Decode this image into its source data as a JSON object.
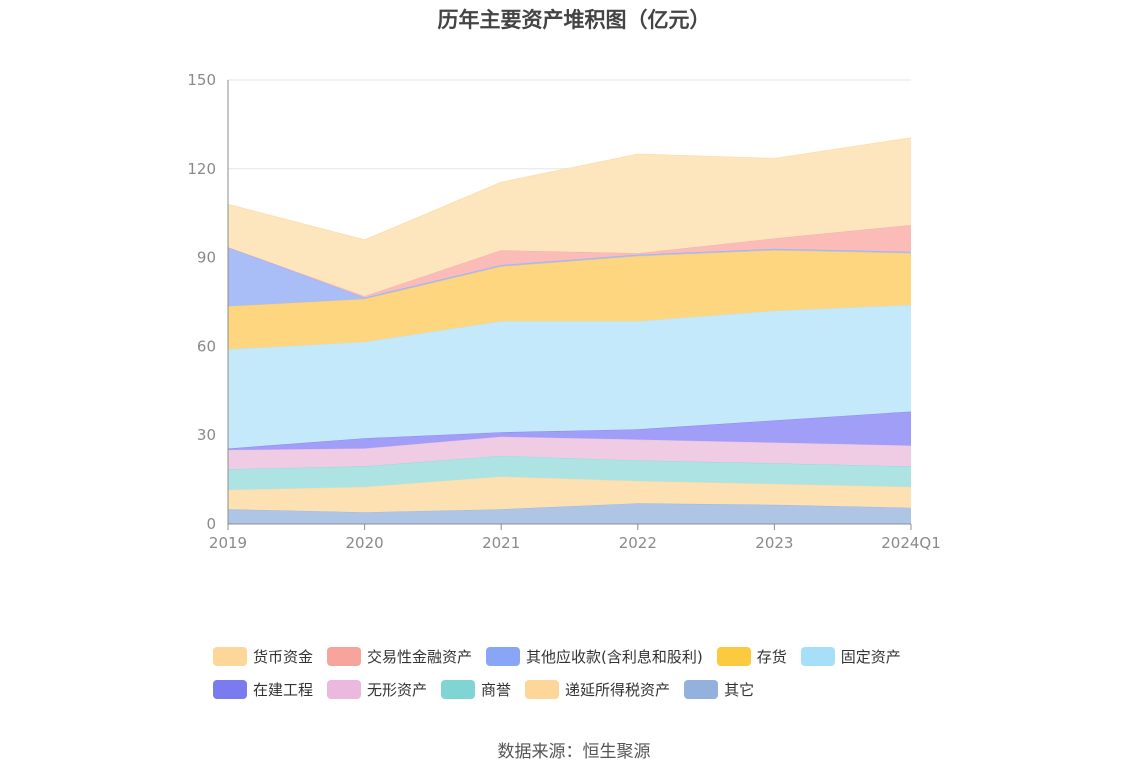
{
  "title": "历年主要资产堆积图（亿元）",
  "source": "数据来源：恒生聚源",
  "chart_data": {
    "type": "area",
    "stacked": true,
    "title": "历年主要资产堆积图（亿元）",
    "xlabel": "",
    "ylabel": "",
    "ylim": [
      0,
      150
    ],
    "yticks": [
      0,
      30,
      60,
      90,
      120,
      150
    ],
    "grid": true,
    "legend_position": "bottom",
    "categories": [
      "2019",
      "2020",
      "2021",
      "2022",
      "2023",
      "2024Q1"
    ],
    "stack_order": [
      "其它",
      "递延所得税资产",
      "商誉",
      "无形资产",
      "在建工程",
      "固定资产",
      "存货",
      "其他应收款(含利息和股利)",
      "交易性金融资产",
      "货币资金"
    ],
    "series": [
      {
        "name": "货币资金",
        "color": "#fdd79a",
        "fill": "#fde5bd",
        "values": [
          14.5,
          19.0,
          23.0,
          33.5,
          27.0,
          29.5
        ]
      },
      {
        "name": "交易性金融资产",
        "color": "#f7a59c",
        "fill": "#fbbcb8",
        "values": [
          0.0,
          0.5,
          5.0,
          0.5,
          3.5,
          9.0
        ]
      },
      {
        "name": "其他应收款(含利息和股利)",
        "color": "#88a6f5",
        "fill": "#a9bdf7",
        "values": [
          20.0,
          0.5,
          0.5,
          0.5,
          0.5,
          0.5
        ]
      },
      {
        "name": "存货",
        "color": "#fcca3f",
        "fill": "#fed680",
        "values": [
          14.5,
          14.5,
          18.5,
          22.0,
          20.5,
          17.5
        ]
      },
      {
        "name": "固定资产",
        "color": "#a8dff8",
        "fill": "#c4e9fb",
        "values": [
          33.5,
          32.5,
          37.5,
          36.5,
          37.0,
          36.0
        ]
      },
      {
        "name": "在建工程",
        "color": "#7b7bf0",
        "fill": "#a19ef7",
        "values": [
          0.5,
          3.5,
          1.5,
          3.5,
          7.5,
          11.5
        ]
      },
      {
        "name": "无形资产",
        "color": "#ebb9de",
        "fill": "#efcbe4",
        "values": [
          6.5,
          6.0,
          6.5,
          7.0,
          7.0,
          7.0
        ]
      },
      {
        "name": "商誉",
        "color": "#7fd4d4",
        "fill": "#aee3e3",
        "values": [
          7.0,
          7.0,
          7.0,
          7.0,
          7.0,
          7.0
        ]
      },
      {
        "name": "递延所得税资产",
        "color": "#fdd79a",
        "fill": "#fde1b2",
        "values": [
          6.5,
          8.5,
          11.0,
          7.5,
          7.0,
          7.0
        ]
      },
      {
        "name": "其它",
        "color": "#94b1dd",
        "fill": "#aec5e6",
        "values": [
          5.0,
          4.0,
          5.0,
          7.0,
          6.5,
          5.5
        ]
      }
    ]
  }
}
